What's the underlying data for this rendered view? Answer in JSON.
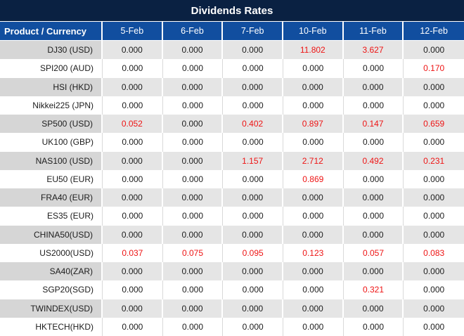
{
  "title": "Dividends Rates",
  "colors": {
    "title_bg": "#0a2142",
    "header_bg": "#114e9f",
    "row_gray": "#e5e5e5",
    "product_gray": "#d6d6d6",
    "row_white": "#ffffff",
    "header_text": "#ffffff",
    "value_text": "#1c1c1c",
    "red": "#ee1414"
  },
  "table": {
    "product_header": "Product / Currency",
    "date_headers": [
      "5-Feb",
      "6-Feb",
      "7-Feb",
      "10-Feb",
      "11-Feb",
      "12-Feb"
    ],
    "rows": [
      {
        "product": "DJ30 (USD)",
        "values": [
          "0.000",
          "0.000",
          "0.000",
          "11.802",
          "3.627",
          "0.000"
        ],
        "red": [
          false,
          false,
          false,
          true,
          true,
          false
        ]
      },
      {
        "product": "SPI200 (AUD)",
        "values": [
          "0.000",
          "0.000",
          "0.000",
          "0.000",
          "0.000",
          "0.170"
        ],
        "red": [
          false,
          false,
          false,
          false,
          false,
          true
        ]
      },
      {
        "product": "HSI (HKD)",
        "values": [
          "0.000",
          "0.000",
          "0.000",
          "0.000",
          "0.000",
          "0.000"
        ],
        "red": [
          false,
          false,
          false,
          false,
          false,
          false
        ]
      },
      {
        "product": "Nikkei225 (JPN)",
        "values": [
          "0.000",
          "0.000",
          "0.000",
          "0.000",
          "0.000",
          "0.000"
        ],
        "red": [
          false,
          false,
          false,
          false,
          false,
          false
        ]
      },
      {
        "product": "SP500 (USD)",
        "values": [
          "0.052",
          "0.000",
          "0.402",
          "0.897",
          "0.147",
          "0.659"
        ],
        "red": [
          true,
          false,
          true,
          true,
          true,
          true
        ]
      },
      {
        "product": "UK100 (GBP)",
        "values": [
          "0.000",
          "0.000",
          "0.000",
          "0.000",
          "0.000",
          "0.000"
        ],
        "red": [
          false,
          false,
          false,
          false,
          false,
          false
        ]
      },
      {
        "product": "NAS100 (USD)",
        "values": [
          "0.000",
          "0.000",
          "1.157",
          "2.712",
          "0.492",
          "0.231"
        ],
        "red": [
          false,
          false,
          true,
          true,
          true,
          true
        ]
      },
      {
        "product": "EU50 (EUR)",
        "values": [
          "0.000",
          "0.000",
          "0.000",
          "0.869",
          "0.000",
          "0.000"
        ],
        "red": [
          false,
          false,
          false,
          true,
          false,
          false
        ]
      },
      {
        "product": "FRA40 (EUR)",
        "values": [
          "0.000",
          "0.000",
          "0.000",
          "0.000",
          "0.000",
          "0.000"
        ],
        "red": [
          false,
          false,
          false,
          false,
          false,
          false
        ]
      },
      {
        "product": "ES35 (EUR)",
        "values": [
          "0.000",
          "0.000",
          "0.000",
          "0.000",
          "0.000",
          "0.000"
        ],
        "red": [
          false,
          false,
          false,
          false,
          false,
          false
        ]
      },
      {
        "product": "CHINA50(USD)",
        "values": [
          "0.000",
          "0.000",
          "0.000",
          "0.000",
          "0.000",
          "0.000"
        ],
        "red": [
          false,
          false,
          false,
          false,
          false,
          false
        ]
      },
      {
        "product": "US2000(USD)",
        "values": [
          "0.037",
          "0.075",
          "0.095",
          "0.123",
          "0.057",
          "0.083"
        ],
        "red": [
          true,
          true,
          true,
          true,
          true,
          true
        ]
      },
      {
        "product": "SA40(ZAR)",
        "values": [
          "0.000",
          "0.000",
          "0.000",
          "0.000",
          "0.000",
          "0.000"
        ],
        "red": [
          false,
          false,
          false,
          false,
          false,
          false
        ]
      },
      {
        "product": "SGP20(SGD)",
        "values": [
          "0.000",
          "0.000",
          "0.000",
          "0.000",
          "0.321",
          "0.000"
        ],
        "red": [
          false,
          false,
          false,
          false,
          true,
          false
        ]
      },
      {
        "product": "TWINDEX(USD)",
        "values": [
          "0.000",
          "0.000",
          "0.000",
          "0.000",
          "0.000",
          "0.000"
        ],
        "red": [
          false,
          false,
          false,
          false,
          false,
          false
        ]
      },
      {
        "product": "HKTECH(HKD)",
        "values": [
          "0.000",
          "0.000",
          "0.000",
          "0.000",
          "0.000",
          "0.000"
        ],
        "red": [
          false,
          false,
          false,
          false,
          false,
          false
        ]
      }
    ]
  },
  "chart_data": {
    "type": "table",
    "title": "Dividends Rates",
    "columns": [
      "Product / Currency",
      "5-Feb",
      "6-Feb",
      "7-Feb",
      "10-Feb",
      "11-Feb",
      "12-Feb"
    ],
    "rows": [
      [
        "DJ30 (USD)",
        0.0,
        0.0,
        0.0,
        11.802,
        3.627,
        0.0
      ],
      [
        "SPI200 (AUD)",
        0.0,
        0.0,
        0.0,
        0.0,
        0.0,
        0.17
      ],
      [
        "HSI (HKD)",
        0.0,
        0.0,
        0.0,
        0.0,
        0.0,
        0.0
      ],
      [
        "Nikkei225 (JPN)",
        0.0,
        0.0,
        0.0,
        0.0,
        0.0,
        0.0
      ],
      [
        "SP500 (USD)",
        0.052,
        0.0,
        0.402,
        0.897,
        0.147,
        0.659
      ],
      [
        "UK100 (GBP)",
        0.0,
        0.0,
        0.0,
        0.0,
        0.0,
        0.0
      ],
      [
        "NAS100 (USD)",
        0.0,
        0.0,
        1.157,
        2.712,
        0.492,
        0.231
      ],
      [
        "EU50 (EUR)",
        0.0,
        0.0,
        0.0,
        0.869,
        0.0,
        0.0
      ],
      [
        "FRA40 (EUR)",
        0.0,
        0.0,
        0.0,
        0.0,
        0.0,
        0.0
      ],
      [
        "ES35 (EUR)",
        0.0,
        0.0,
        0.0,
        0.0,
        0.0,
        0.0
      ],
      [
        "CHINA50(USD)",
        0.0,
        0.0,
        0.0,
        0.0,
        0.0,
        0.0
      ],
      [
        "US2000(USD)",
        0.037,
        0.075,
        0.095,
        0.123,
        0.057,
        0.083
      ],
      [
        "SA40(ZAR)",
        0.0,
        0.0,
        0.0,
        0.0,
        0.0,
        0.0
      ],
      [
        "SGP20(SGD)",
        0.0,
        0.0,
        0.0,
        0.0,
        0.321,
        0.0
      ],
      [
        "TWINDEX(USD)",
        0.0,
        0.0,
        0.0,
        0.0,
        0.0,
        0.0
      ],
      [
        "HKTECH(HKD)",
        0.0,
        0.0,
        0.0,
        0.0,
        0.0,
        0.0
      ]
    ],
    "notes": "Non-zero dividend values are rendered in red; zero values in black. Odd rows have gray background.",
    "legend_position": "none",
    "grid": "cell borders only"
  }
}
